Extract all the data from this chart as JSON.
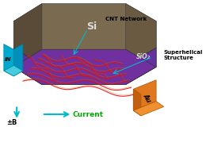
{
  "bg_color": "#ffffff",
  "substrate_si_color": "#7a6a50",
  "substrate_sio2_color": "#8060a0",
  "top_surface_color": "#7030a0",
  "electrode_in_color": "#00aacc",
  "electrode_au_color": "#e07820",
  "helix_red_color": "#dd1111",
  "helix_orange_color": "#cc6600",
  "arrow_color": "#00bbcc",
  "current_color": "#00aa00",
  "label_color": "#000000",
  "title": "",
  "arrow_b_label": "±B",
  "arrow_current_label": "Current",
  "sio2_label": "SiO₂",
  "si_label": "Si",
  "superhelical_label": "Superhelical\nStructure",
  "cnt_label": "CNT Network",
  "in_label": "IN",
  "au_label": "Au"
}
